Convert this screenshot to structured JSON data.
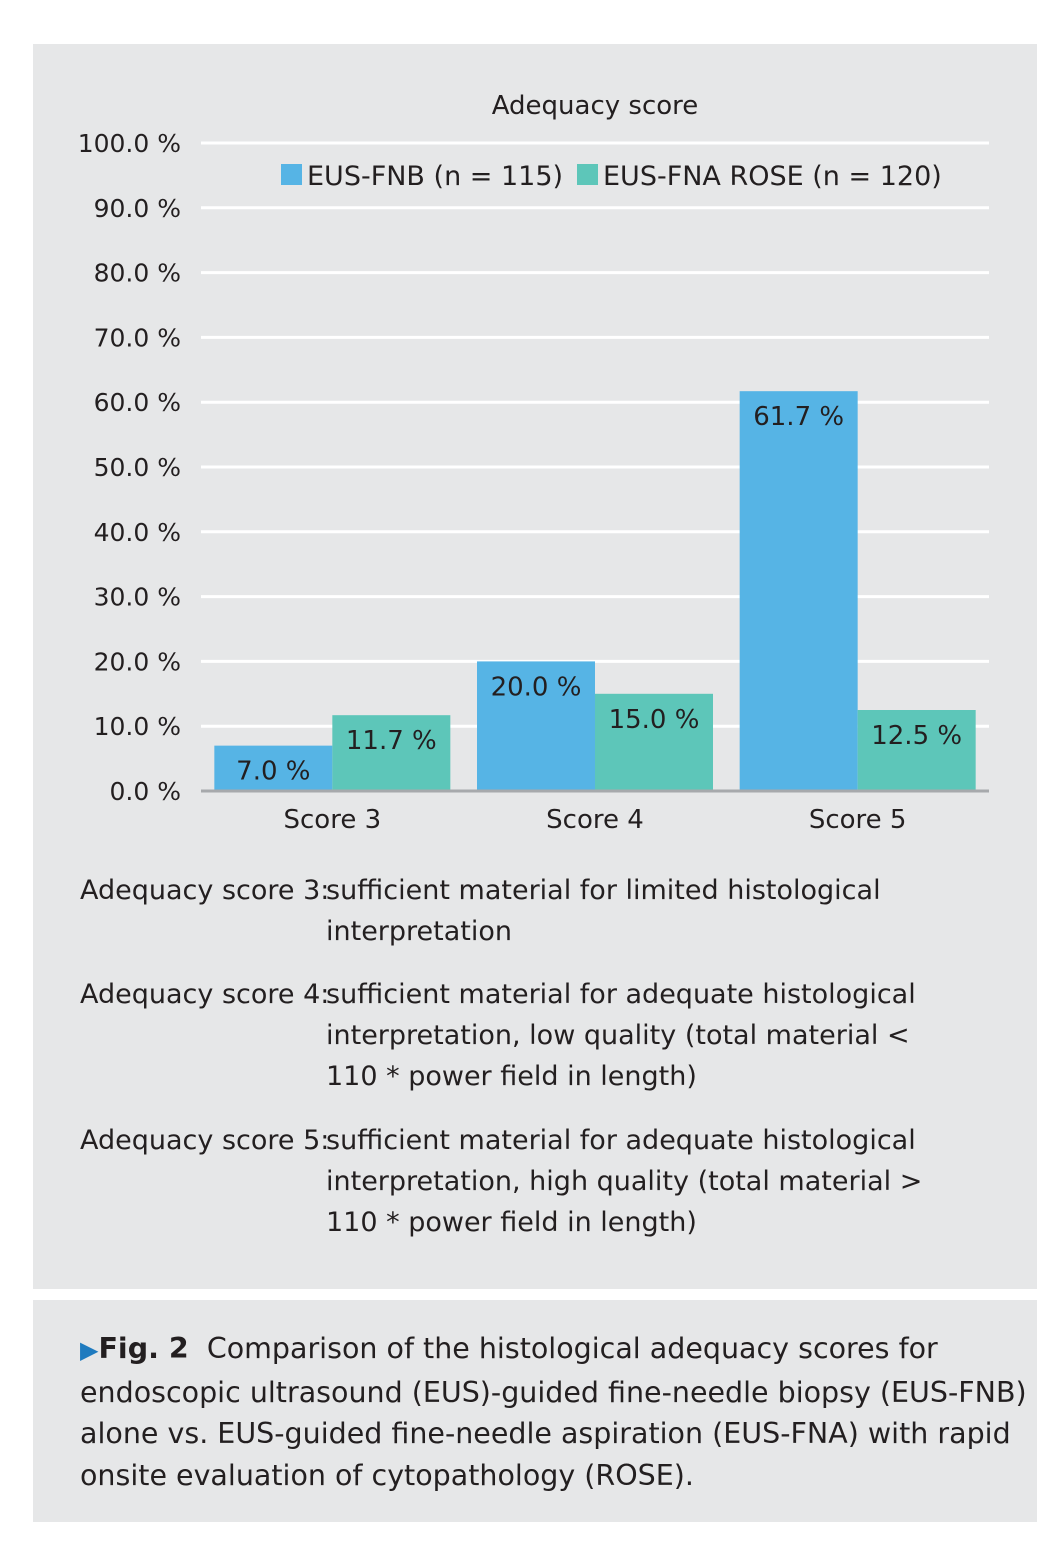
{
  "chart_data": {
    "type": "bar",
    "title": "Adequacy score",
    "categories": [
      "Score 3",
      "Score 4",
      "Score 5"
    ],
    "series": [
      {
        "name": "EUS-FNB (n = 115)",
        "color": "#56b4e5",
        "values": [
          7.0,
          20.0,
          61.7
        ],
        "labels": [
          "7.0 %",
          "20.0 %",
          "61.7 %"
        ]
      },
      {
        "name": "EUS-FNA ROSE (n = 120)",
        "color": "#5dc6b9",
        "values": [
          11.7,
          15.0,
          12.5
        ],
        "labels": [
          "11.7 %",
          "15.0 %",
          "12.5 %"
        ]
      }
    ],
    "yticks": [
      "0.0 %",
      "10.0 %",
      "20.0 %",
      "30.0 %",
      "40.0 %",
      "50.0 %",
      "60.0 %",
      "70.0 %",
      "80.0 %",
      "90.0 %",
      "100.0 %"
    ],
    "ylim": [
      0,
      100
    ],
    "grid": true,
    "legend_position": "top"
  },
  "definitions": [
    {
      "term": "Adequacy score 3:",
      "text": "sufficient material for limited histological interpretation"
    },
    {
      "term": "Adequacy score 4:",
      "text": "sufficient material for adequate histological interpretation, low quality (total material < 110 * power field in length)"
    },
    {
      "term": "Adequacy score 5:",
      "text": "sufficient material for adequate histological interpretation, high quality (total material > 110 * power field in length)"
    }
  ],
  "caption": {
    "marker": "▶",
    "label": "Fig. 2",
    "text": "Comparison of the histological adequacy scores for endoscopic ultrasound (EUS)-guided fine-needle biopsy (EUS-FNB) alone vs. EUS-guided fine-needle aspiration (EUS-FNA) with rapid onsite evaluation of cytopathology (ROSE)."
  }
}
